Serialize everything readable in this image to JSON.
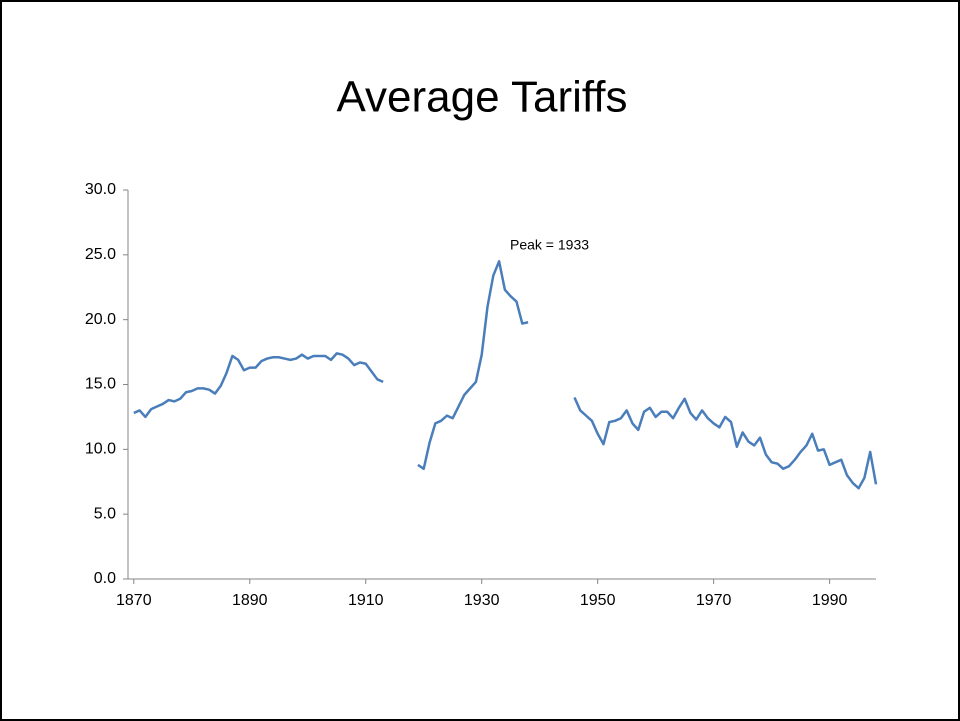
{
  "chart_data": {
    "type": "line",
    "title": "Average Tariffs",
    "annotation": "Peak = 1933",
    "x": [
      1870,
      1871,
      1872,
      1873,
      1874,
      1875,
      1876,
      1877,
      1878,
      1879,
      1880,
      1881,
      1882,
      1883,
      1884,
      1885,
      1886,
      1887,
      1888,
      1889,
      1890,
      1891,
      1892,
      1893,
      1894,
      1895,
      1896,
      1897,
      1898,
      1899,
      1900,
      1901,
      1902,
      1903,
      1904,
      1905,
      1906,
      1907,
      1908,
      1909,
      1910,
      1911,
      1912,
      1913,
      1914,
      1915,
      1916,
      1917,
      1918,
      1919,
      1920,
      1921,
      1922,
      1923,
      1924,
      1925,
      1926,
      1927,
      1928,
      1929,
      1930,
      1931,
      1932,
      1933,
      1934,
      1935,
      1936,
      1937,
      1938,
      1939,
      1940,
      1941,
      1942,
      1943,
      1944,
      1945,
      1946,
      1947,
      1948,
      1949,
      1950,
      1951,
      1952,
      1953,
      1954,
      1955,
      1956,
      1957,
      1958,
      1959,
      1960,
      1961,
      1962,
      1963,
      1964,
      1965,
      1966,
      1967,
      1968,
      1969,
      1970,
      1971,
      1972,
      1973,
      1974,
      1975,
      1976,
      1977,
      1978,
      1979,
      1980,
      1981,
      1982,
      1983,
      1984,
      1985,
      1986,
      1987,
      1988,
      1989,
      1990,
      1991,
      1992,
      1993,
      1994,
      1995,
      1996,
      1997,
      1998
    ],
    "values": [
      12.8,
      13.0,
      12.5,
      13.1,
      13.3,
      13.5,
      13.8,
      13.7,
      13.9,
      14.4,
      14.5,
      14.7,
      14.7,
      14.6,
      14.3,
      14.9,
      15.9,
      17.2,
      16.9,
      16.1,
      16.3,
      16.3,
      16.8,
      17.0,
      17.1,
      17.1,
      17.0,
      16.9,
      17.0,
      17.3,
      17.0,
      17.2,
      17.2,
      17.2,
      16.9,
      17.4,
      17.3,
      17.0,
      16.5,
      16.7,
      16.6,
      16.0,
      15.4,
      15.2,
      null,
      null,
      null,
      null,
      null,
      8.8,
      8.5,
      10.5,
      12.0,
      12.2,
      12.6,
      12.4,
      13.3,
      14.2,
      14.7,
      15.2,
      17.3,
      21.0,
      23.4,
      24.5,
      22.3,
      21.8,
      21.4,
      19.7,
      19.8,
      null,
      null,
      null,
      null,
      null,
      null,
      null,
      14.0,
      13.0,
      12.6,
      12.2,
      11.2,
      10.4,
      12.1,
      12.2,
      12.4,
      13.0,
      12.0,
      11.5,
      12.9,
      13.2,
      12.5,
      12.9,
      12.9,
      12.4,
      13.2,
      13.9,
      12.8,
      12.3,
      13.0,
      12.4,
      12.0,
      11.7,
      12.5,
      12.1,
      10.2,
      11.3,
      10.6,
      10.3,
      10.9,
      9.6,
      9.0,
      8.9,
      8.5,
      8.7,
      9.2,
      9.8,
      10.3,
      11.2,
      9.9,
      10.0,
      8.8,
      9.0,
      9.2,
      8.0,
      7.4,
      7.0,
      7.8,
      9.8,
      7.3
    ],
    "color": "#4a7ebb",
    "xlim": [
      1869,
      1998
    ],
    "xticks": [
      1870,
      1890,
      1910,
      1930,
      1950,
      1970,
      1990
    ],
    "ylim": [
      0,
      30
    ],
    "yticks": [
      {
        "value": 0,
        "label": "0.0"
      },
      {
        "value": 5,
        "label": "5.0"
      },
      {
        "value": 10,
        "label": "10.0"
      },
      {
        "value": 15,
        "label": "15.0"
      },
      {
        "value": 20,
        "label": "20.0"
      },
      {
        "value": 25,
        "label": "25.0"
      },
      {
        "value": 30,
        "label": "30.0"
      }
    ]
  }
}
